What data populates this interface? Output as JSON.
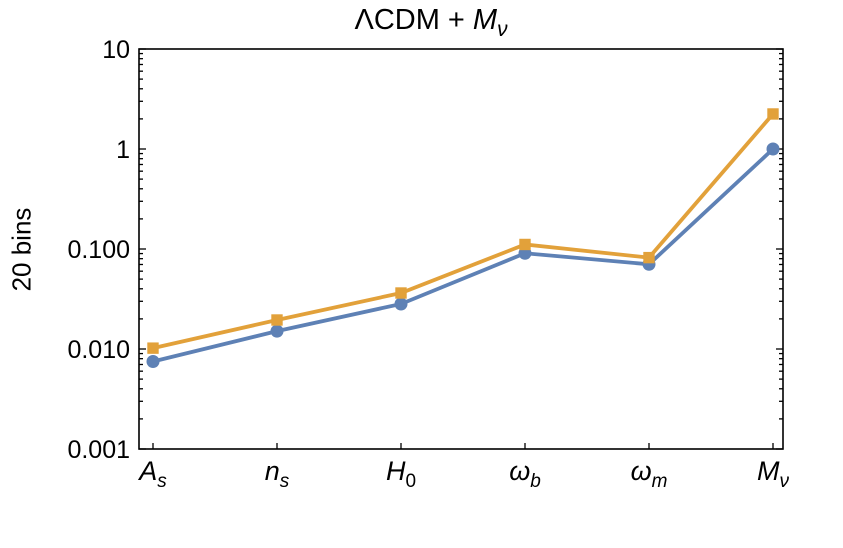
{
  "chart_data": {
    "type": "line",
    "title": {
      "prefix": "ΛCDM + ",
      "variable": "M",
      "subscript": "ν",
      "text": "ΛCDM + M_ν"
    },
    "ylabel": "20 bins",
    "xlabel": "",
    "yscale": "log",
    "ylim": [
      0.001,
      10
    ],
    "grid": false,
    "frame": true,
    "legend": "none",
    "yticks": [
      {
        "value": 10,
        "label": "10"
      },
      {
        "value": 1,
        "label": "1"
      },
      {
        "value": 0.1,
        "label": "0.100"
      },
      {
        "value": 0.01,
        "label": "0.010"
      },
      {
        "value": 0.001,
        "label": "0.001"
      }
    ],
    "categories": [
      {
        "main": "A",
        "sub": "s",
        "sub_italic": true,
        "text": "A_s"
      },
      {
        "main": "n",
        "sub": "s",
        "sub_italic": true,
        "text": "n_s"
      },
      {
        "main": "H",
        "sub": "0",
        "sub_italic": false,
        "text": "H_0"
      },
      {
        "main": "ω",
        "sub": "b",
        "sub_italic": true,
        "text": "ω_b"
      },
      {
        "main": "ω",
        "sub": "m",
        "sub_italic": true,
        "text": "ω_m"
      },
      {
        "main": "M",
        "sub": "ν",
        "sub_italic": true,
        "text": "M_ν"
      }
    ],
    "series": [
      {
        "name": "blue-circles",
        "marker": "circle",
        "color": "#5E81B5",
        "values": [
          0.0075,
          0.0151,
          0.0282,
          0.0906,
          0.0703,
          1.0
        ]
      },
      {
        "name": "orange-squares",
        "marker": "square",
        "color": "#E2A13A",
        "values": [
          0.0102,
          0.0195,
          0.0363,
          0.111,
          0.082,
          2.24
        ]
      }
    ]
  },
  "colors": {
    "axis": "#000000",
    "background": "#FFFFFF"
  }
}
